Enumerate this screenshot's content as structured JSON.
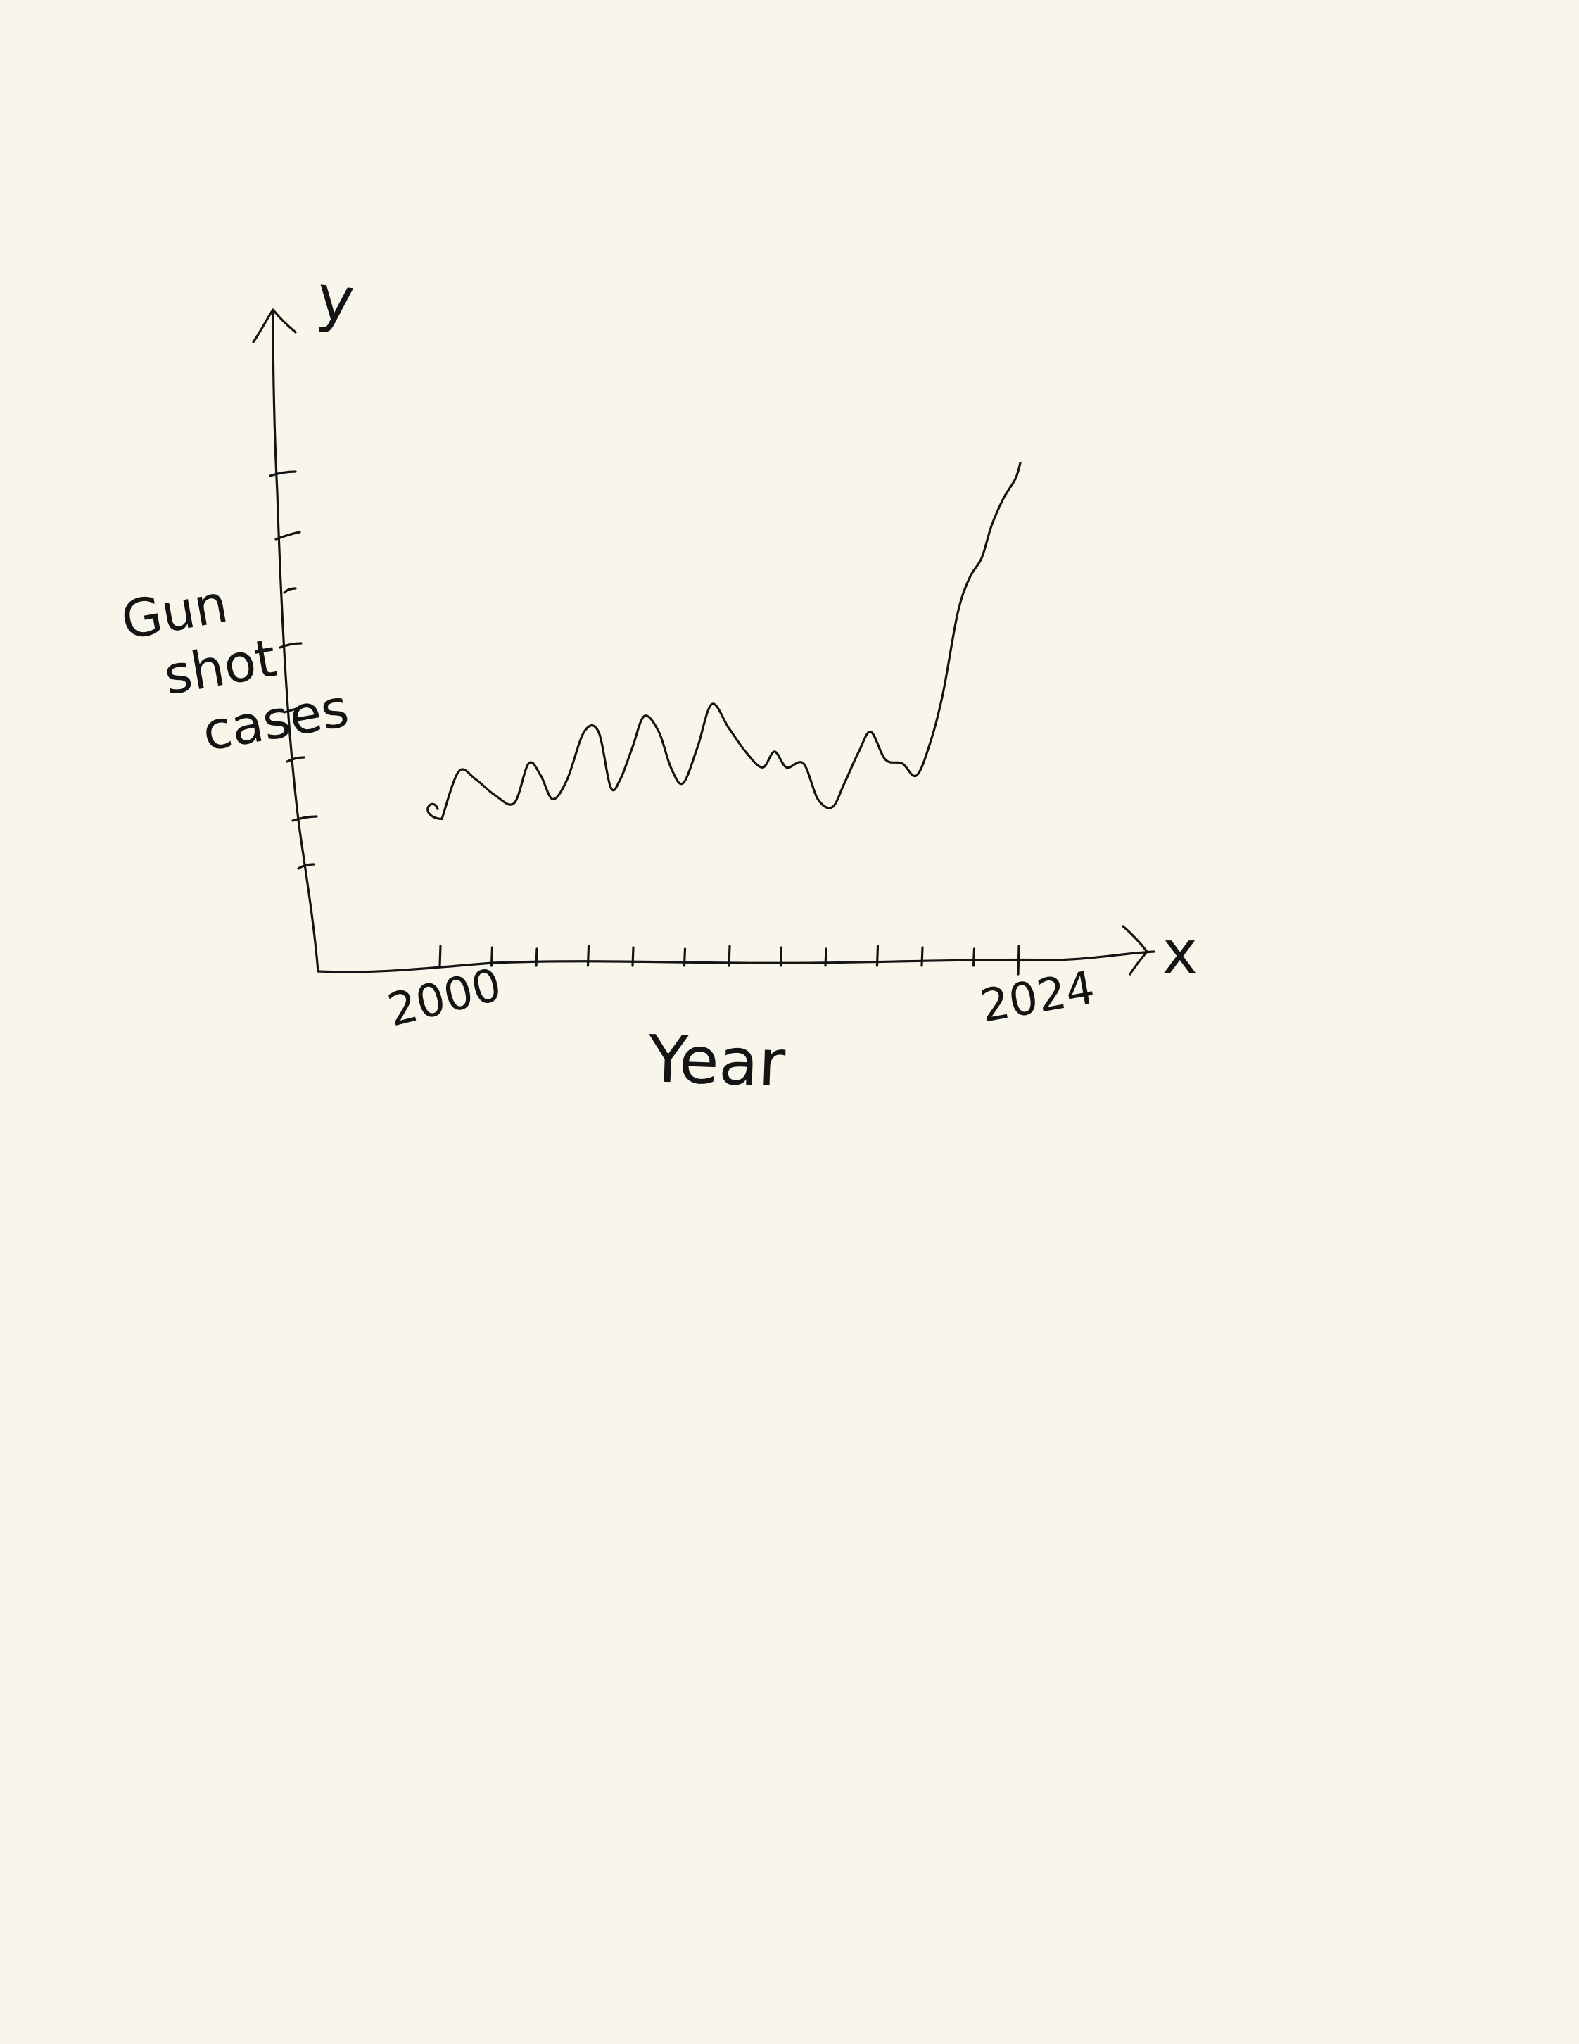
{
  "chart_data": {
    "type": "line",
    "title": "",
    "xlabel": "Year",
    "ylabel": "Gun shot cases",
    "x_axis_letter": "x",
    "y_axis_letter": "y",
    "x_tick_labels": [
      "2000",
      "2024"
    ],
    "xlim": [
      2000,
      2024
    ],
    "grid": false,
    "legend": "none",
    "series": [
      {
        "x": [
          2000.0,
          2000.7,
          2001.4,
          2002.2,
          2003.0,
          2003.6,
          2004.1,
          2004.6,
          2005.2,
          2005.9,
          2006.5,
          2007.0,
          2007.4,
          2007.9,
          2008.4,
          2009.0,
          2009.5,
          2010.0,
          2010.6,
          2011.2,
          2011.9,
          2012.6,
          2013.3,
          2013.8,
          2014.3,
          2015.0,
          2015.6,
          2016.2,
          2016.7,
          2017.3,
          2017.8,
          2018.4,
          2019.1,
          2019.7,
          2020.3,
          2020.8,
          2021.4,
          2021.9,
          2022.4,
          2022.8,
          2023.3,
          2023.8,
          2024.0
        ],
        "y": [
          9,
          21,
          19,
          15,
          13,
          23,
          20,
          14,
          19,
          31,
          31,
          17,
          19,
          27,
          35,
          31,
          22,
          18,
          27,
          38,
          32,
          26,
          22,
          26,
          22,
          23,
          14,
          12,
          18,
          26,
          31,
          24,
          23,
          20,
          29,
          41,
          61,
          70,
          75,
          83,
          90,
          95,
          99
        ],
        "color": "#141414"
      }
    ]
  }
}
